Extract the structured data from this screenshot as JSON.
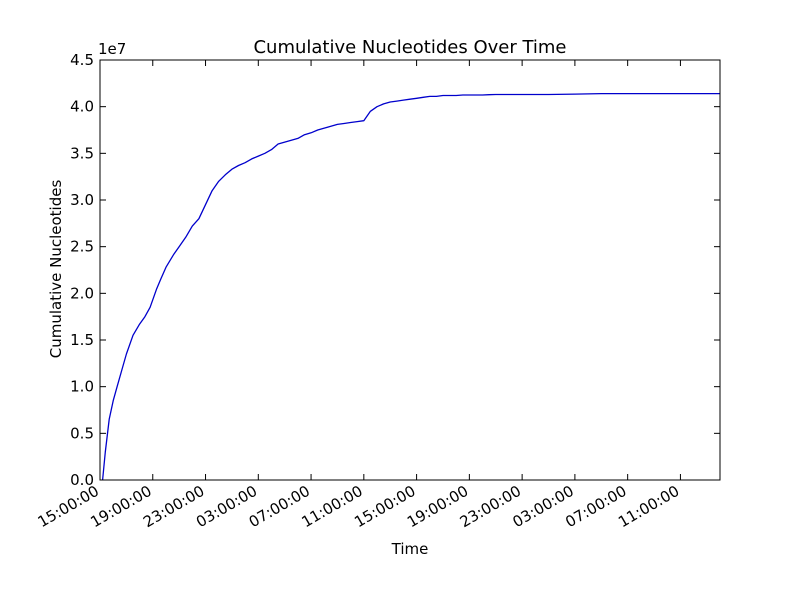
{
  "chart_data": {
    "type": "line",
    "title": "Cumulative Nucleotides Over Time",
    "xlabel": "Time",
    "ylabel": "Cumulative Nucleotides",
    "y_multiplier": "1e7",
    "ylim": [
      0,
      4.5
    ],
    "y_ticks": [
      "0.0",
      "0.5",
      "1.0",
      "1.5",
      "2.0",
      "2.5",
      "3.0",
      "3.5",
      "4.0",
      "4.5"
    ],
    "x_ticks": [
      "15:00:00",
      "19:00:00",
      "23:00:00",
      "03:00:00",
      "07:00:00",
      "11:00:00",
      "15:00:00",
      "19:00:00",
      "23:00:00",
      "03:00:00",
      "07:00:00",
      "11:00:00"
    ],
    "xlim_hours": [
      0,
      47
    ],
    "grid": false,
    "legend": "none",
    "series": [
      {
        "color": "#0000cc",
        "x_hours": [
          0.2,
          0.4,
          0.7,
          1.0,
          1.3,
          1.7,
          2.0,
          2.5,
          3.0,
          3.4,
          3.8,
          4.3,
          4.6,
          5.0,
          5.6,
          6.0,
          6.5,
          7.0,
          7.5,
          8.0,
          8.5,
          9.0,
          9.5,
          10.0,
          10.5,
          11.0,
          11.5,
          12.0,
          12.5,
          13.0,
          13.5,
          14.0,
          14.5,
          15.0,
          15.5,
          16.0,
          16.5,
          17.0,
          17.5,
          18.0,
          18.5,
          19.0,
          19.5,
          20.0,
          20.5,
          21.0,
          21.5,
          22.0,
          22.5,
          23.0,
          23.5,
          24.0,
          24.5,
          25.0,
          25.5,
          26.0,
          26.5,
          27.0,
          27.5,
          28.0,
          28.5,
          29.0,
          29.5,
          30.0,
          31.0,
          32.0,
          33.0,
          34.0,
          36.0,
          38.0,
          40.0,
          42.0,
          44.0,
          46.0,
          47.0
        ],
        "values": [
          0.0,
          0.3,
          0.65,
          0.85,
          1.0,
          1.2,
          1.35,
          1.55,
          1.67,
          1.75,
          1.85,
          2.05,
          2.15,
          2.28,
          2.42,
          2.5,
          2.6,
          2.72,
          2.8,
          2.95,
          3.1,
          3.2,
          3.27,
          3.33,
          3.37,
          3.4,
          3.44,
          3.47,
          3.5,
          3.54,
          3.6,
          3.62,
          3.64,
          3.66,
          3.7,
          3.72,
          3.75,
          3.77,
          3.79,
          3.81,
          3.82,
          3.83,
          3.84,
          3.85,
          3.95,
          4.0,
          4.03,
          4.05,
          4.06,
          4.07,
          4.08,
          4.09,
          4.1,
          4.11,
          4.11,
          4.12,
          4.12,
          4.12,
          4.125,
          4.125,
          4.125,
          4.125,
          4.128,
          4.13,
          4.13,
          4.13,
          4.13,
          4.13,
          4.135,
          4.14,
          4.14,
          4.14,
          4.14,
          4.14,
          4.14
        ]
      }
    ]
  }
}
